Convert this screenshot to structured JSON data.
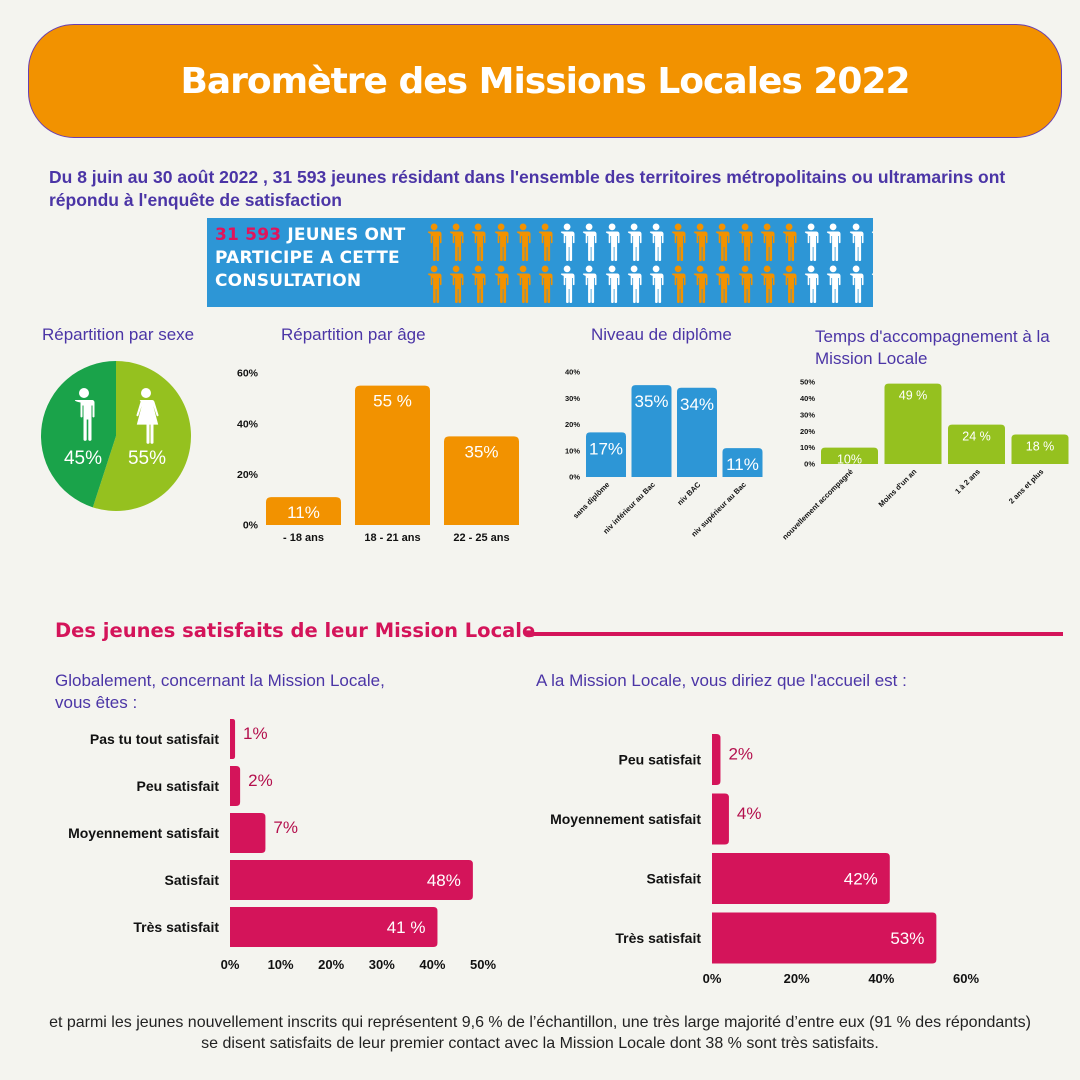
{
  "title": "Baromètre des Missions Locales 2022",
  "intro": "Du 8 juin au 30 août 2022 , 31 593 jeunes résidant dans l'ensemble des territoires métropolitains ou ultramarins ont répondu à l'enquête de satisfaction",
  "participants": {
    "number": "31 593",
    "text": " JEUNES ONT PARTICIPE A CETTE CONSULTATION",
    "icon": "person-icon",
    "colors": {
      "background": "#2d96d6",
      "orange": "#f29200",
      "white": "#ffffff"
    },
    "row_pattern": [
      "o",
      "o",
      "o",
      "o",
      "o",
      "o",
      "w",
      "w",
      "w",
      "w",
      "w",
      "o",
      "o",
      "o",
      "o",
      "o",
      "o",
      "w",
      "w",
      "w",
      "w"
    ]
  },
  "section_labels": {
    "sexe": "Répartition par sexe",
    "age": "Répartition par âge",
    "diplome": "Niveau de diplôme",
    "temps": "Temps d'accompagnement à la Mission Locale"
  },
  "satisfaction": {
    "heading": "Des jeunes satisfaits de leur Mission Locale",
    "q1": "Globalement, concernant la Mission Locale, vous êtes :",
    "q2": "A la Mission Locale, vous diriez que l'accueil est :"
  },
  "footer": "et parmi les jeunes nouvellement inscrits qui représentent 9,6 % de l’échantillon, une très large majorité d’entre eux (91 % des répondants) se disent satisfaits de leur premier contact avec la Mission Locale dont 38 % sont très satisfaits.",
  "chart_data": [
    {
      "id": "sexe",
      "type": "pie",
      "categories": [
        "homme",
        "femme"
      ],
      "values": [
        45,
        55
      ],
      "labels": [
        "45%",
        "55%"
      ],
      "icons": [
        "male-icon",
        "female-icon"
      ],
      "colors": [
        "#1aa34a",
        "#95c11f"
      ]
    },
    {
      "id": "age",
      "type": "bar",
      "categories": [
        "- 18 ans",
        "18 - 21 ans",
        "22 - 25 ans"
      ],
      "values": [
        11,
        55,
        35
      ],
      "labels": [
        "11%",
        "55 %",
        "35%"
      ],
      "yticks": [
        "0%",
        "20%",
        "40%",
        "60%"
      ],
      "ylim": [
        0,
        60
      ],
      "color": "#f29200"
    },
    {
      "id": "diplome",
      "type": "bar",
      "categories": [
        "sans diplôme",
        "niv inférieur au Bac",
        "niv BAC",
        "niv supérieur au Bac"
      ],
      "values": [
        17,
        35,
        34,
        11
      ],
      "labels": [
        "17%",
        "35%",
        "34%",
        "11%"
      ],
      "yticks": [
        "0%",
        "10%",
        "20%",
        "30%",
        "40%"
      ],
      "ylim": [
        0,
        40
      ],
      "color": "#2d96d6"
    },
    {
      "id": "temps",
      "type": "bar",
      "categories": [
        "nouvellement accompagné",
        "Moins d'un an",
        "1 à 2 ans",
        "2 ans et plus"
      ],
      "values": [
        10,
        49,
        24,
        18
      ],
      "labels": [
        "10%",
        "49 %",
        "24 %",
        "18 %"
      ],
      "yticks": [
        "0%",
        "10%",
        "20%",
        "30%",
        "40%",
        "50%"
      ],
      "ylim": [
        0,
        50
      ],
      "color": "#95c11f"
    },
    {
      "id": "globalement",
      "type": "bar",
      "orientation": "horizontal",
      "categories": [
        "Pas tu tout satisfait",
        "Peu satisfait",
        "Moyennement satisfait",
        "Satisfait",
        "Très satisfait"
      ],
      "values": [
        1,
        2,
        7,
        48,
        41
      ],
      "labels": [
        "1%",
        "2%",
        "7%",
        "48%",
        "41 %"
      ],
      "xticks": [
        "0%",
        "10%",
        "20%",
        "30%",
        "40%",
        "50%"
      ],
      "xlim": [
        0,
        50
      ],
      "color": "#d4145a"
    },
    {
      "id": "accueil",
      "type": "bar",
      "orientation": "horizontal",
      "categories": [
        "Peu satisfait",
        "Moyennement satisfait",
        "Satisfait",
        "Très satisfait"
      ],
      "values": [
        2,
        4,
        42,
        53
      ],
      "labels": [
        "2%",
        "4%",
        "42%",
        "53%"
      ],
      "xticks": [
        "0%",
        "20%",
        "40%",
        "60%"
      ],
      "xlim": [
        0,
        60
      ],
      "color": "#d4145a"
    }
  ]
}
